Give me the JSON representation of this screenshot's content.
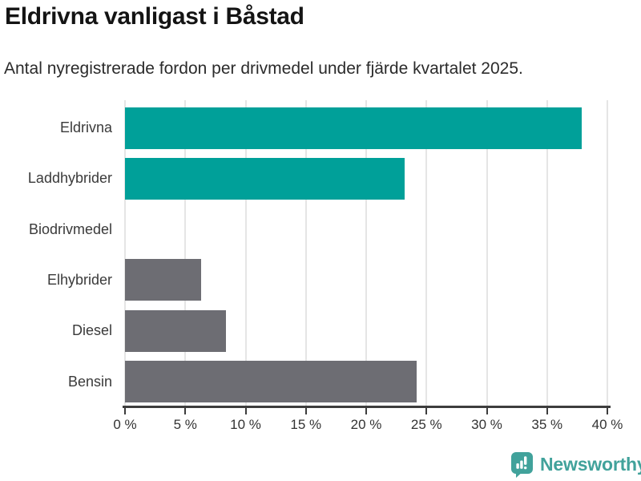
{
  "header": {
    "title": "Eldrivna vanligast i Båstad",
    "subtitle": "Antal nyregistrerade fordon per drivmedel under fjärde kvartalet 2025."
  },
  "chart_data": {
    "type": "bar",
    "orientation": "horizontal",
    "title": "Eldrivna vanligast i Båstad",
    "subtitle": "Antal nyregistrerade fordon per drivmedel under fjärde kvartalet 2025.",
    "xlabel": "",
    "ylabel": "",
    "categories": [
      "Eldrivna",
      "Laddhybrider",
      "Biodrivmedel",
      "Elhybrider",
      "Diesel",
      "Bensin"
    ],
    "values": [
      37.9,
      23.2,
      0,
      6.3,
      8.4,
      24.2
    ],
    "unit": "%",
    "bar_colors": [
      "#00a099",
      "#00a099",
      "#6d6d73",
      "#6d6d73",
      "#6d6d73",
      "#6d6d73"
    ],
    "xlim": [
      0,
      40
    ],
    "x_tick_values": [
      0,
      5,
      10,
      15,
      20,
      25,
      30,
      35,
      40
    ],
    "x_tick_labels": [
      "0 %",
      "5 %",
      "10 %",
      "15 %",
      "20 %",
      "25 %",
      "30 %",
      "35 %",
      "40 %"
    ],
    "grid": "vertical",
    "legend": "none"
  },
  "colors": {
    "accent_teal": "#00a099",
    "neutral_gray": "#6d6d73",
    "gridline": "#e5e5e5",
    "axis": "#3d3d3d",
    "logo_teal": "#41a29b"
  },
  "footer": {
    "brand": "Newsworthy"
  }
}
